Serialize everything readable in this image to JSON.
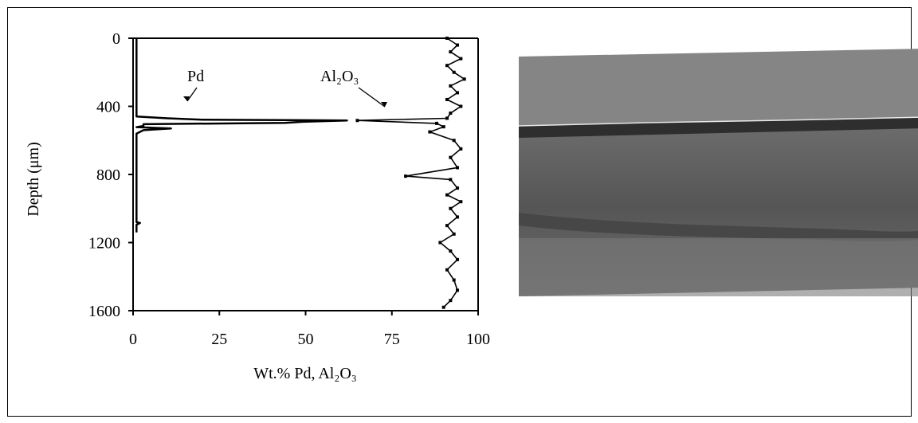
{
  "chart_data": {
    "type": "line",
    "xlabel": "Wt.% Pd, Al₂O₃",
    "ylabel": "Depth (μm)",
    "xlim": [
      0,
      100
    ],
    "ylim": [
      0,
      1600
    ],
    "y_inverted": true,
    "xticks": [
      "0",
      "25",
      "50",
      "75",
      "100"
    ],
    "yticks": [
      "0",
      "400",
      "800",
      "1200",
      "1600"
    ],
    "grid": false,
    "annotations": [
      "Pd",
      "Al₂O₃"
    ],
    "series": [
      {
        "name": "Pd",
        "color": "#000000",
        "points": [
          [
            1,
            0
          ],
          [
            1,
            440
          ],
          [
            1,
            460
          ],
          [
            10,
            470
          ],
          [
            20,
            478
          ],
          [
            62,
            483
          ],
          [
            50,
            490
          ],
          [
            44,
            497
          ],
          [
            3,
            505
          ],
          [
            3,
            515
          ],
          [
            1,
            522
          ],
          [
            11,
            530
          ],
          [
            3,
            540
          ],
          [
            1,
            560
          ],
          [
            1,
            1080
          ],
          [
            2,
            1085
          ],
          [
            1,
            1095
          ],
          [
            1,
            1140
          ]
        ]
      },
      {
        "name": "Al₂O₃",
        "color": "#000000",
        "points": [
          [
            91,
            0
          ],
          [
            94,
            40
          ],
          [
            92,
            80
          ],
          [
            95,
            120
          ],
          [
            91,
            160
          ],
          [
            93,
            200
          ],
          [
            96,
            240
          ],
          [
            92,
            280
          ],
          [
            94,
            320
          ],
          [
            91,
            360
          ],
          [
            95,
            400
          ],
          [
            92,
            440
          ],
          [
            91,
            470
          ],
          [
            65,
            483
          ],
          [
            88,
            500
          ],
          [
            90,
            520
          ],
          [
            86,
            550
          ],
          [
            93,
            600
          ],
          [
            95,
            650
          ],
          [
            92,
            700
          ],
          [
            94,
            760
          ],
          [
            79,
            810
          ],
          [
            92,
            830
          ],
          [
            94,
            880
          ],
          [
            91,
            920
          ],
          [
            95,
            960
          ],
          [
            92,
            1000
          ],
          [
            94,
            1050
          ],
          [
            91,
            1100
          ],
          [
            93,
            1150
          ],
          [
            89,
            1200
          ],
          [
            92,
            1250
          ],
          [
            94,
            1300
          ],
          [
            91,
            1360
          ],
          [
            93,
            1420
          ],
          [
            94,
            1480
          ],
          [
            92,
            1540
          ],
          [
            90,
            1580
          ]
        ]
      }
    ]
  },
  "photo": {
    "type": "cross-section micrograph",
    "colors": {
      "base": "#7d7d7d",
      "band": "#333333",
      "stripe": "#e0e0e0"
    }
  }
}
